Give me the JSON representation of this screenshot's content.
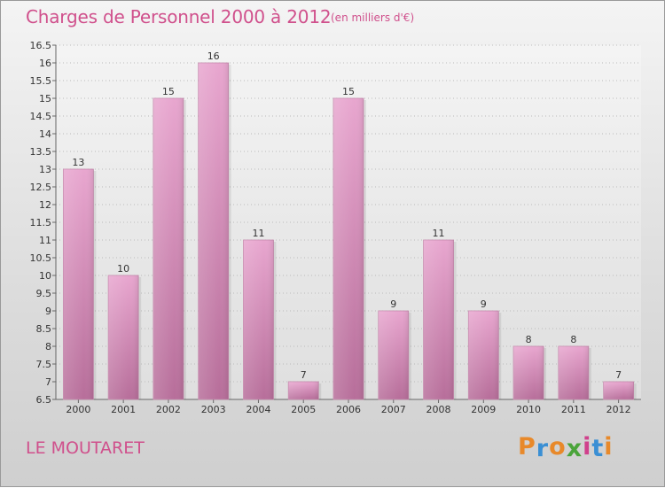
{
  "title": "Charges de Personnel 2000 à 2012",
  "subtitle": "(en milliers d'€)",
  "commune": "LE MOUTARET",
  "logo": {
    "text": "Proxiti",
    "colors": [
      "#e8892a",
      "#3a8fd4",
      "#e8892a",
      "#4aa43a",
      "#d0408c",
      "#3a8fd4",
      "#e8892a"
    ]
  },
  "colors": {
    "bar_light": "#e8a6cf",
    "bar_dark": "#b76e9a",
    "title": "#d0508c"
  },
  "chart_data": {
    "type": "bar",
    "categories": [
      "2000",
      "2001",
      "2002",
      "2003",
      "2004",
      "2005",
      "2006",
      "2007",
      "2008",
      "2009",
      "2010",
      "2011",
      "2012"
    ],
    "values": [
      13,
      10,
      15,
      16,
      11,
      7,
      15,
      9,
      11,
      9,
      8,
      8,
      7
    ],
    "value_labels": [
      "13",
      "10",
      "15",
      "16",
      "11",
      "7",
      "15",
      "9",
      "11",
      "9",
      "8",
      "8",
      "7"
    ],
    "y_ticks": [
      "6.5",
      "7",
      "7.5",
      "8",
      "8.5",
      "9",
      "9.5",
      "10",
      "10.5",
      "11",
      "11.5",
      "12",
      "12.5",
      "13",
      "13.5",
      "14",
      "14.5",
      "15",
      "15.5",
      "16",
      "16.5"
    ],
    "ylim": [
      6.5,
      16.5
    ],
    "grid": true,
    "legend": "none"
  }
}
